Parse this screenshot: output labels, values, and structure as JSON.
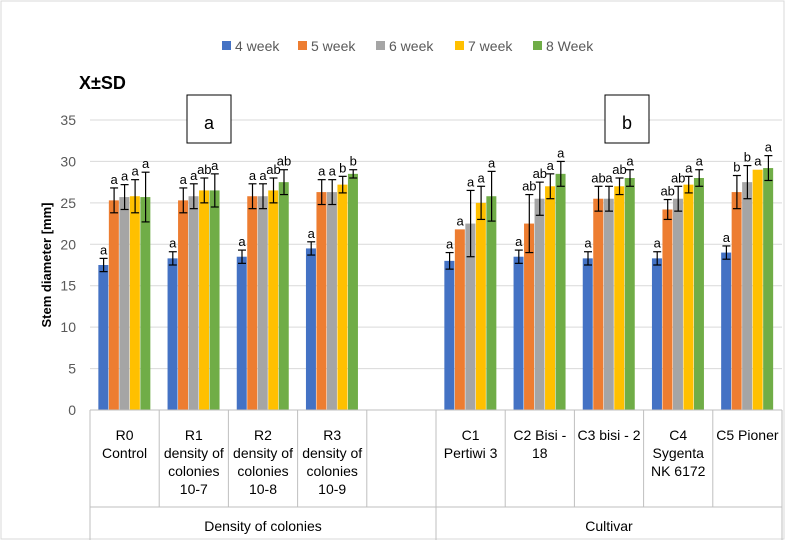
{
  "chart_data": {
    "type": "bar",
    "title": "",
    "corner_label": "X±SD",
    "ylabel": "Stem diameter [mm]",
    "xlabel": "",
    "ylim": [
      0,
      35
    ],
    "yticks": [
      0,
      5,
      10,
      15,
      20,
      25,
      30,
      35
    ],
    "grid": true,
    "legend_position": "top",
    "series": [
      {
        "name": "4 week",
        "color": "#4472C4"
      },
      {
        "name": "5 week",
        "color": "#ED7D31"
      },
      {
        "name": "6 week",
        "color": "#A5A5A5"
      },
      {
        "name": "7 week",
        "color": "#FFC000"
      },
      {
        "name": "8 Week",
        "color": "#70AD47"
      }
    ],
    "categories": [
      {
        "label": [
          "R0",
          "Control"
        ],
        "values": [
          17.5,
          25.3,
          25.7,
          25.8,
          25.7
        ],
        "sd": [
          0.8,
          1.5,
          1.5,
          2.0,
          3.0
        ],
        "letters": [
          "a",
          "a",
          "a",
          "a",
          "a"
        ]
      },
      {
        "label": [
          "R1",
          "density of",
          "colonies",
          "10-7"
        ],
        "values": [
          18.3,
          25.3,
          25.8,
          26.5,
          26.5
        ],
        "sd": [
          0.8,
          1.5,
          1.5,
          1.5,
          2.0
        ],
        "letters": [
          "a",
          "a",
          "a",
          "ab",
          "a"
        ]
      },
      {
        "label": [
          "R2",
          "density of",
          "colonies",
          "10-8"
        ],
        "values": [
          18.5,
          25.8,
          25.8,
          26.5,
          27.5
        ],
        "sd": [
          0.8,
          1.5,
          1.5,
          1.5,
          1.5
        ],
        "letters": [
          "a",
          "a",
          "a",
          "ab",
          "ab"
        ]
      },
      {
        "label": [
          "R3",
          "density of",
          "colonies",
          "10-9"
        ],
        "values": [
          19.5,
          26.3,
          26.3,
          27.2,
          28.5
        ],
        "sd": [
          0.8,
          1.5,
          1.5,
          1.0,
          0.5
        ],
        "letters": [
          "a",
          "a",
          "a",
          "b",
          "b"
        ]
      },
      {
        "label": [
          "",
          ""
        ],
        "values": [
          null,
          null,
          null,
          null,
          null
        ],
        "sd": [
          null,
          null,
          null,
          null,
          null
        ],
        "letters": [
          "",
          "",
          "",
          "",
          ""
        ]
      },
      {
        "label": [
          "C1",
          "Pertiwi 3"
        ],
        "values": [
          18.0,
          21.8,
          22.5,
          25.0,
          25.8
        ],
        "sd": [
          1.0,
          null,
          4.0,
          2.0,
          3.0
        ],
        "letters": [
          "a",
          "a",
          "a",
          "a",
          "a"
        ]
      },
      {
        "label": [
          "C2 Bisi -",
          "18"
        ],
        "values": [
          18.5,
          22.5,
          25.5,
          27.0,
          28.5
        ],
        "sd": [
          0.8,
          3.5,
          2.0,
          1.5,
          1.5
        ],
        "letters": [
          "a",
          "ab",
          "ab",
          "a",
          "a"
        ]
      },
      {
        "label": [
          "C3 bisi - 2"
        ],
        "values": [
          18.3,
          25.5,
          25.5,
          27.0,
          28.0
        ],
        "sd": [
          0.8,
          1.5,
          1.5,
          1.0,
          1.0
        ],
        "letters": [
          "a",
          "ab",
          "a",
          "ab",
          "a"
        ]
      },
      {
        "label": [
          "C4",
          "Sygenta",
          "NK 6172"
        ],
        "values": [
          18.3,
          24.2,
          25.5,
          27.2,
          28.0
        ],
        "sd": [
          0.8,
          1.2,
          1.5,
          1.0,
          1.0
        ],
        "letters": [
          "a",
          "ab",
          "ab",
          "a",
          "a"
        ]
      },
      {
        "label": [
          "C5 Pioner"
        ],
        "values": [
          19.0,
          26.3,
          27.5,
          29.0,
          29.2
        ],
        "sd": [
          0.8,
          2.0,
          2.0,
          null,
          1.5
        ],
        "letters": [
          "a",
          "b",
          "b",
          "a",
          "a"
        ]
      }
    ],
    "panel_labels": [
      "a",
      "b"
    ],
    "groups": [
      {
        "label": "Density of colonies"
      },
      {
        "label": "Cultivar"
      }
    ]
  }
}
